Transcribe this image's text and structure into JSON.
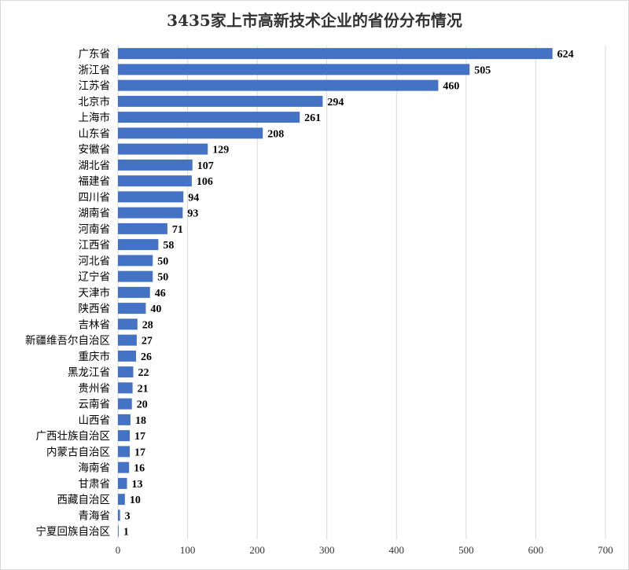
{
  "chart_data": {
    "type": "bar",
    "orientation": "horizontal",
    "title": "3435家上市高新技术企业的省份分布情况",
    "xlabel": "",
    "ylabel": "",
    "xlim": [
      0,
      700
    ],
    "x_ticks": [
      0,
      100,
      200,
      300,
      400,
      500,
      600,
      700
    ],
    "grid": true,
    "legend": "none",
    "bar_color": "#4472c4",
    "categories": [
      "广东省",
      "浙江省",
      "江苏省",
      "北京市",
      "上海市",
      "山东省",
      "安徽省",
      "湖北省",
      "福建省",
      "四川省",
      "湖南省",
      "河南省",
      "江西省",
      "河北省",
      "辽宁省",
      "天津市",
      "陕西省",
      "吉林省",
      "新疆维吾尔自治区",
      "重庆市",
      "黑龙江省",
      "贵州省",
      "云南省",
      "山西省",
      "广西壮族自治区",
      "内蒙古自治区",
      "海南省",
      "甘肃省",
      "西藏自治区",
      "青海省",
      "宁夏回族自治区"
    ],
    "values": [
      624,
      505,
      460,
      294,
      261,
      208,
      129,
      107,
      106,
      94,
      93,
      71,
      58,
      50,
      50,
      46,
      40,
      28,
      27,
      26,
      22,
      21,
      20,
      18,
      17,
      17,
      16,
      13,
      10,
      3,
      1
    ]
  }
}
